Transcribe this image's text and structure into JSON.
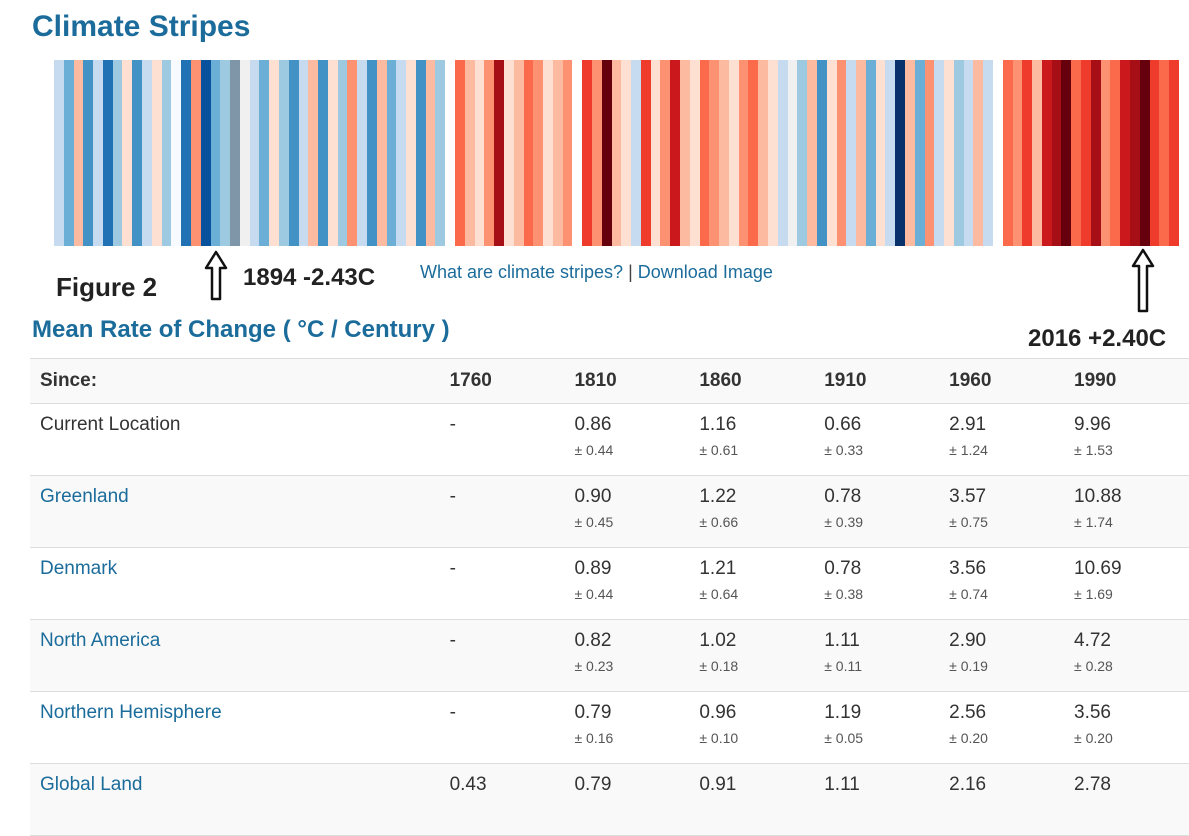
{
  "page": {
    "title": "Climate Stripes",
    "figure_label": "Figure 2",
    "annotation_left": "1894 -2.43C",
    "annotation_right": "2016 +2.40C",
    "link_what": "What are climate stripes?",
    "link_separator": " | ",
    "link_download": "Download Image",
    "subtitle": "Mean Rate of Change ( °C / Century )"
  },
  "stripes": {
    "colors": [
      "#c6dbef",
      "#6baed6",
      "#fcbba1",
      "#4292c6",
      "#c6dbef",
      "#2171b5",
      "#9ecae1",
      "#fee0d2",
      "#4292c6",
      "#c6dbef",
      "#fee0d2",
      "#9ecae1",
      "#f7fbff",
      "#2171b5",
      "#fc9272",
      "#08519c",
      "#6baed6",
      "#9ecae1",
      "#7f95a8",
      "#f0f0f0",
      "#c6dbef",
      "#6baed6",
      "#fee0d2",
      "#9ecae1",
      "#4292c6",
      "#c6dbef",
      "#fcbba1",
      "#4292c6",
      "#fee0d2",
      "#9ecae1",
      "#fc9272",
      "#c6dbef",
      "#4292c6",
      "#fcbba1",
      "#6baed6",
      "#c6dbef",
      "#fee0d2",
      "#4292c6",
      "#fcbba1",
      "#9ecae1",
      "#ffffff",
      "#fb6a4a",
      "#fcbba1",
      "#fee0d2",
      "#fc9272",
      "#a50f15",
      "#fee0d2",
      "#fcbba1",
      "#fb6a4a",
      "#fc9272",
      "#fee0d2",
      "#fcbba1",
      "#fc9272",
      "#ffffff",
      "#ef3b2c",
      "#fc9272",
      "#67000d",
      "#fcbba1",
      "#fee0d2",
      "#c6dbef",
      "#ef3b2c",
      "#fee0d2",
      "#fc9272",
      "#cb181d",
      "#fcbba1",
      "#fee0d2",
      "#fb6a4a",
      "#fc9272",
      "#fcbba1",
      "#fee0d2",
      "#fc9272",
      "#fb6a4a",
      "#fcbba1",
      "#fee0d2",
      "#c6dbef",
      "#f0f0f0",
      "#9ecae1",
      "#fcbba1",
      "#4292c6",
      "#fee0d2",
      "#fc9272",
      "#c6dbef",
      "#fcbba1",
      "#6baed6",
      "#fee0d2",
      "#c6dbef",
      "#08306b",
      "#fcbba1",
      "#6baed6",
      "#fc9272",
      "#c6dbef",
      "#fee0d2",
      "#9ecae1",
      "#c6dbef",
      "#fcbba1",
      "#c6dbef",
      "#ffffff",
      "#fb6a4a",
      "#fc9272",
      "#ef3b2c",
      "#fcbba1",
      "#cb181d",
      "#a50f15",
      "#67000d",
      "#fb6a4a",
      "#ef3b2c",
      "#a50f15",
      "#fc9272",
      "#fb6a4a",
      "#cb181d",
      "#a50f15",
      "#67000d",
      "#ef3b2c",
      "#fb6a4a",
      "#ef3b2c"
    ]
  },
  "table": {
    "headers": [
      "Since:",
      "1760",
      "1810",
      "1860",
      "1910",
      "1960",
      "1990"
    ],
    "rows": [
      {
        "name": "Current Location",
        "vals": [
          "-",
          "0.86",
          "1.16",
          "0.66",
          "2.91",
          "9.96"
        ],
        "errs": [
          "",
          "± 0.44",
          "± 0.61",
          "± 0.33",
          "± 1.24",
          "± 1.53"
        ]
      },
      {
        "name": "Greenland",
        "vals": [
          "-",
          "0.90",
          "1.22",
          "0.78",
          "3.57",
          "10.88"
        ],
        "errs": [
          "",
          "± 0.45",
          "± 0.66",
          "± 0.39",
          "± 0.75",
          "± 1.74"
        ]
      },
      {
        "name": "Denmark",
        "vals": [
          "-",
          "0.89",
          "1.21",
          "0.78",
          "3.56",
          "10.69"
        ],
        "errs": [
          "",
          "± 0.44",
          "± 0.64",
          "± 0.38",
          "± 0.74",
          "± 1.69"
        ]
      },
      {
        "name": "North America",
        "vals": [
          "-",
          "0.82",
          "1.02",
          "1.11",
          "2.90",
          "4.72"
        ],
        "errs": [
          "",
          "± 0.23",
          "± 0.18",
          "± 0.11",
          "± 0.19",
          "± 0.28"
        ]
      },
      {
        "name": "Northern Hemisphere",
        "vals": [
          "-",
          "0.79",
          "0.96",
          "1.19",
          "2.56",
          "3.56"
        ],
        "errs": [
          "",
          "± 0.16",
          "± 0.10",
          "± 0.05",
          "± 0.20",
          "± 0.20"
        ]
      },
      {
        "name": "Global Land",
        "vals": [
          "0.43",
          "0.79",
          "0.91",
          "1.11",
          "2.16",
          "2.78"
        ],
        "errs": [
          "",
          "",
          "",
          "",
          "",
          ""
        ]
      }
    ]
  }
}
